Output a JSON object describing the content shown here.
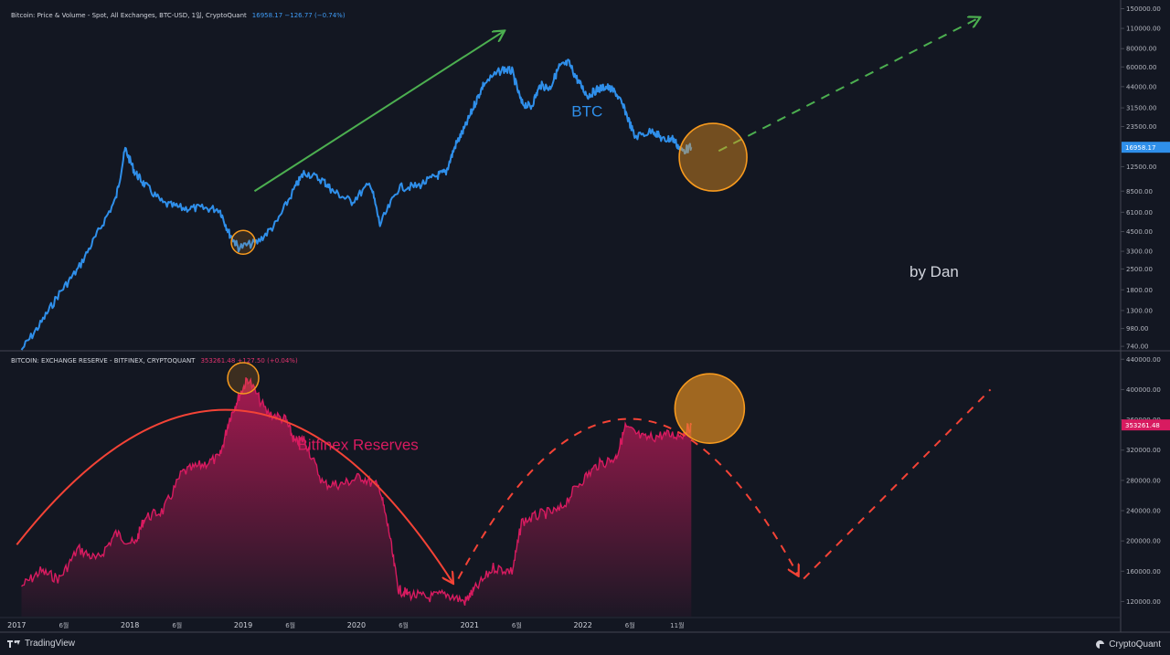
{
  "header_top": {
    "title": "Bitcoin: Price & Volume - Spot, All Exchanges, BTC-USD, 1일, CryptoQuant",
    "value": "16958.17  −126.77 (−0.74%)"
  },
  "header_bottom": {
    "title": "BITCOIN: EXCHANGE RESERVE - BITFINEX, CRYPTOQUANT",
    "value": "353261.48  +127.50 (+0.04%)"
  },
  "footer": {
    "left": "TradingView",
    "right": "CryptoQuant"
  },
  "colors": {
    "background": "#131722",
    "btc_line": "#2f8fea",
    "reserve_line": "#d81b60",
    "up_arrow": "#4caf50",
    "arc": "#f44336",
    "highlight": "#f79a1e"
  },
  "chart_data": [
    {
      "type": "line",
      "name_label": "BTC",
      "y_scale": "log",
      "ylim": [
        700,
        160000
      ],
      "y_ticks": [
        "150000.00",
        "110000.00",
        "80000.00",
        "60000.00",
        "44000.00",
        "31500.00",
        "23500.00",
        "12500.00",
        "8500.00",
        "6100.00",
        "4500.00",
        "3300.00",
        "2500.00",
        "1800.00",
        "1300.00",
        "980.00",
        "740.00"
      ],
      "last_value_label": "16958.17",
      "series": [
        {
          "x": [
            "2017-01",
            "2017-03",
            "2017-05",
            "2017-07",
            "2017-09",
            "2017-11",
            "2017-12",
            "2018-01",
            "2018-02",
            "2018-04",
            "2018-06",
            "2018-08",
            "2018-10",
            "2018-11",
            "2018-12",
            "2019-02",
            "2019-04",
            "2019-06",
            "2019-07",
            "2019-09",
            "2019-10",
            "2019-12",
            "2020-02",
            "2020-03",
            "2020-05",
            "2020-07",
            "2020-09",
            "2020-10",
            "2020-11",
            "2020-12",
            "2021-01",
            "2021-02",
            "2021-04",
            "2021-05",
            "2021-06",
            "2021-07",
            "2021-08",
            "2021-09",
            "2021-10",
            "2021-11",
            "2021-12",
            "2022-01",
            "2022-02",
            "2022-03",
            "2022-04",
            "2022-05",
            "2022-06",
            "2022-08",
            "2022-09",
            "2022-10",
            "2022-11",
            "2022-12"
          ],
          "values": [
            700,
            1050,
            1700,
            2500,
            4300,
            7500,
            16500,
            11500,
            9500,
            7000,
            6500,
            6500,
            6400,
            4400,
            3500,
            3800,
            5100,
            9000,
            11500,
            10000,
            8500,
            7200,
            9600,
            5000,
            9000,
            9200,
            10800,
            11500,
            17500,
            23000,
            33000,
            46000,
            58000,
            56000,
            34000,
            32000,
            45000,
            43000,
            60000,
            64000,
            48000,
            38000,
            42000,
            44000,
            40000,
            30000,
            20000,
            22000,
            19000,
            19500,
            16000,
            16958
          ]
        }
      ],
      "annotations": [
        "BTC",
        "by Dan"
      ]
    },
    {
      "type": "area",
      "name_label": "Bitfinex Reserves",
      "ylim": [
        100000,
        450000
      ],
      "y_ticks": [
        "440000.00",
        "400000.00",
        "360000.00",
        "320000.00",
        "280000.00",
        "240000.00",
        "200000.00",
        "160000.00",
        "120000.00"
      ],
      "last_value_label": "353261.48",
      "x_ticks": [
        "2017",
        "6월",
        "2018",
        "6월",
        "2019",
        "6월",
        "2020",
        "6월",
        "2021",
        "6월",
        "2022",
        "6월",
        "11월"
      ],
      "series": [
        {
          "x": [
            "2017-01",
            "2017-03",
            "2017-05",
            "2017-07",
            "2017-09",
            "2017-11",
            "2018-01",
            "2018-02",
            "2018-04",
            "2018-06",
            "2018-08",
            "2018-10",
            "2018-11",
            "2018-12",
            "2019-01",
            "2019-03",
            "2019-05",
            "2019-06",
            "2019-07",
            "2019-09",
            "2019-11",
            "2020-01",
            "2020-03",
            "2020-04",
            "2020-05",
            "2020-06",
            "2020-08",
            "2020-10",
            "2020-12",
            "2021-01",
            "2021-03",
            "2021-05",
            "2021-06",
            "2021-08",
            "2021-10",
            "2021-12",
            "2022-02",
            "2022-04",
            "2022-05",
            "2022-07",
            "2022-09",
            "2022-11",
            "2022-12"
          ],
          "values": [
            140000,
            160000,
            150000,
            190000,
            175000,
            210000,
            195000,
            230000,
            240000,
            290000,
            300000,
            310000,
            360000,
            390000,
            415000,
            370000,
            360000,
            330000,
            335000,
            275000,
            275000,
            285000,
            270000,
            210000,
            135000,
            130000,
            125000,
            130000,
            120000,
            135000,
            165000,
            160000,
            225000,
            235000,
            240000,
            275000,
            300000,
            310000,
            350000,
            335000,
            340000,
            340000,
            353261
          ]
        }
      ],
      "annotations": [
        "Bitfinex Reserves"
      ]
    }
  ]
}
